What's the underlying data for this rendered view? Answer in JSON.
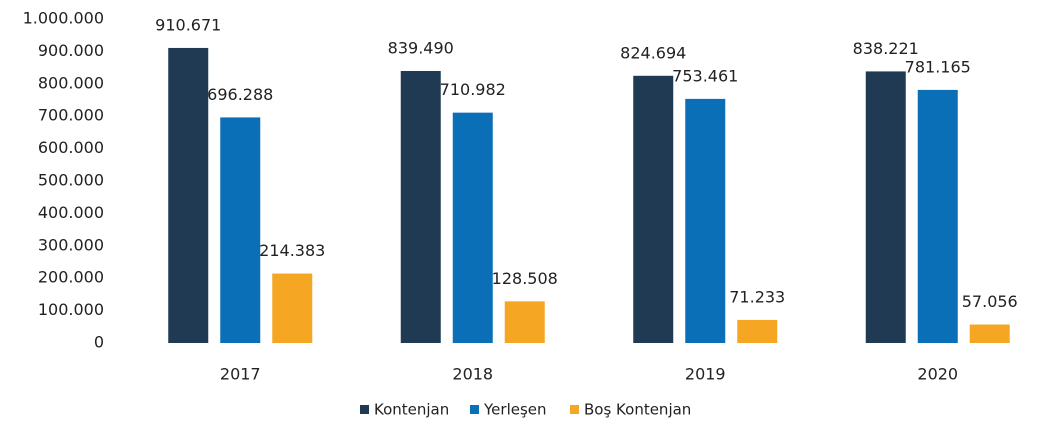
{
  "chart_data": {
    "type": "bar",
    "categories": [
      "2017",
      "2018",
      "2019",
      "2020"
    ],
    "series": [
      {
        "name": "Kontenjan",
        "color": "#1f3a52",
        "values": [
          910671,
          839490,
          824694,
          838221
        ],
        "value_labels": [
          "910.671",
          "839.490",
          "824.694",
          "838.221"
        ]
      },
      {
        "name": "Yerleşen",
        "color": "#0b6fb8",
        "values": [
          696288,
          710982,
          753461,
          781165
        ],
        "value_labels": [
          "696.288",
          "710.982",
          "753.461",
          "781.165"
        ]
      },
      {
        "name": "Boş Kontenjan",
        "color": "#f5a623",
        "values": [
          214383,
          128508,
          71233,
          57056
        ],
        "value_labels": [
          "214.383",
          "128.508",
          "71.233",
          "57.056"
        ]
      }
    ],
    "ylim": [
      0,
      1000000
    ],
    "yticks": [
      0,
      {
        "value": 100000,
        "label": "100.000"
      },
      {
        "value": 200000,
        "label": "200.000"
      },
      {
        "value": 300000,
        "label": "300.000"
      },
      {
        "value": 400000,
        "label": "400.000"
      },
      {
        "value": 500000,
        "label": "500.000"
      },
      {
        "value": 600000,
        "label": "600.000"
      },
      {
        "value": 700000,
        "label": "700.000"
      },
      {
        "value": 800000,
        "label": "800.000"
      },
      {
        "value": 900000,
        "label": "900.000"
      },
      {
        "value": 1000000,
        "label": "1.000.000"
      }
    ],
    "grid": false,
    "legend": "bottom"
  }
}
